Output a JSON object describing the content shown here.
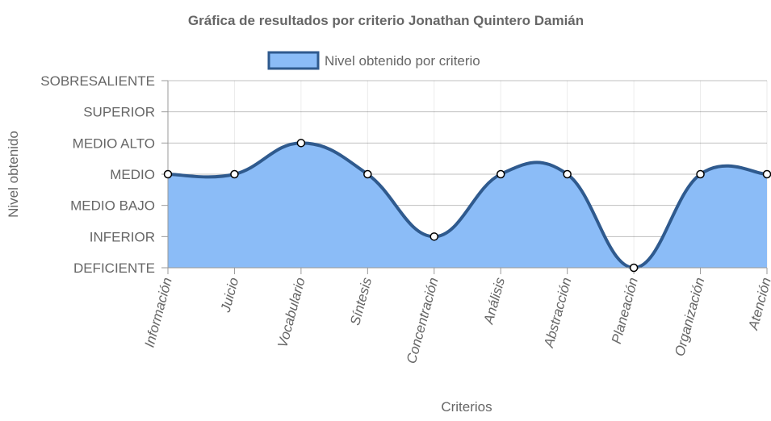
{
  "chart_data": {
    "type": "area",
    "title": "Gráfica de resultados por criterio Jonathan Quintero Damián",
    "xlabel": "Criterios",
    "ylabel": "Nivel obtenido",
    "y_levels": [
      "DEFICIENTE",
      "INFERIOR",
      "MEDIO BAJO",
      "MEDIO",
      "MEDIO ALTO",
      "SUPERIOR",
      "SOBRESALIENTE"
    ],
    "categories": [
      "Información",
      "Juicio",
      "Vocabulario",
      "Síntesis",
      "Concentración",
      "Análisis",
      "Abstracción",
      "Planeación",
      "Organización",
      "Atención"
    ],
    "series": [
      {
        "name": "Nivel obtenido por criterio",
        "values": [
          "MEDIO",
          "MEDIO",
          "MEDIO ALTO",
          "MEDIO",
          "INFERIOR",
          "MEDIO",
          "MEDIO",
          "DEFICIENTE",
          "MEDIO",
          "MEDIO"
        ]
      }
    ],
    "legend_position": "top",
    "grid": true,
    "fill_color": "#8bbcf7",
    "line_color": "#2f5a8e",
    "point_fill": "#ffffff"
  }
}
